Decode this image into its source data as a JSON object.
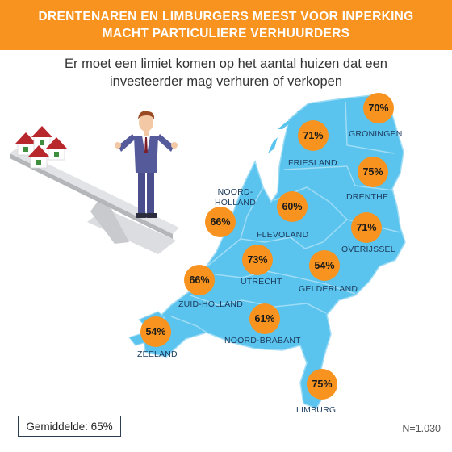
{
  "header": {
    "title_line1": "DRENTENAREN EN LIMBURGERS MEEST VOOR INPERKING",
    "title_line2": "MACHT PARTICULIERE VERHUURDERS"
  },
  "subtitle": {
    "line1": "Er moet een limiet komen op het aantal huizen dat een",
    "line2": "investeerder mag verhuren of verkopen"
  },
  "colors": {
    "accent": "#f7931e",
    "map": "#5bc4ee",
    "map_border": "#9fdcf5",
    "label": "#1b3a5c"
  },
  "provinces": [
    {
      "name": "GRONINGEN",
      "value": "70%"
    },
    {
      "name": "FRIESLAND",
      "value": "71%"
    },
    {
      "name": "DRENTHE",
      "value": "75%"
    },
    {
      "name_line1": "NOORD-",
      "name_line2": "HOLLAND",
      "value": "66%"
    },
    {
      "name": "FLEVOLAND",
      "value": "60%"
    },
    {
      "name": "OVERIJSSEL",
      "value": "71%"
    },
    {
      "name": "UTRECHT",
      "value": "73%"
    },
    {
      "name": "GELDERLAND",
      "value": "54%"
    },
    {
      "name": "ZUID-HOLLAND",
      "value": "66%"
    },
    {
      "name": "ZEELAND",
      "value": "54%"
    },
    {
      "name": "NOORD-BRABANT",
      "value": "61%"
    },
    {
      "name": "LIMBURG",
      "value": "75%"
    }
  ],
  "footer": {
    "average": "Gemiddelde: 65%",
    "sample_size": "N=1.030"
  }
}
